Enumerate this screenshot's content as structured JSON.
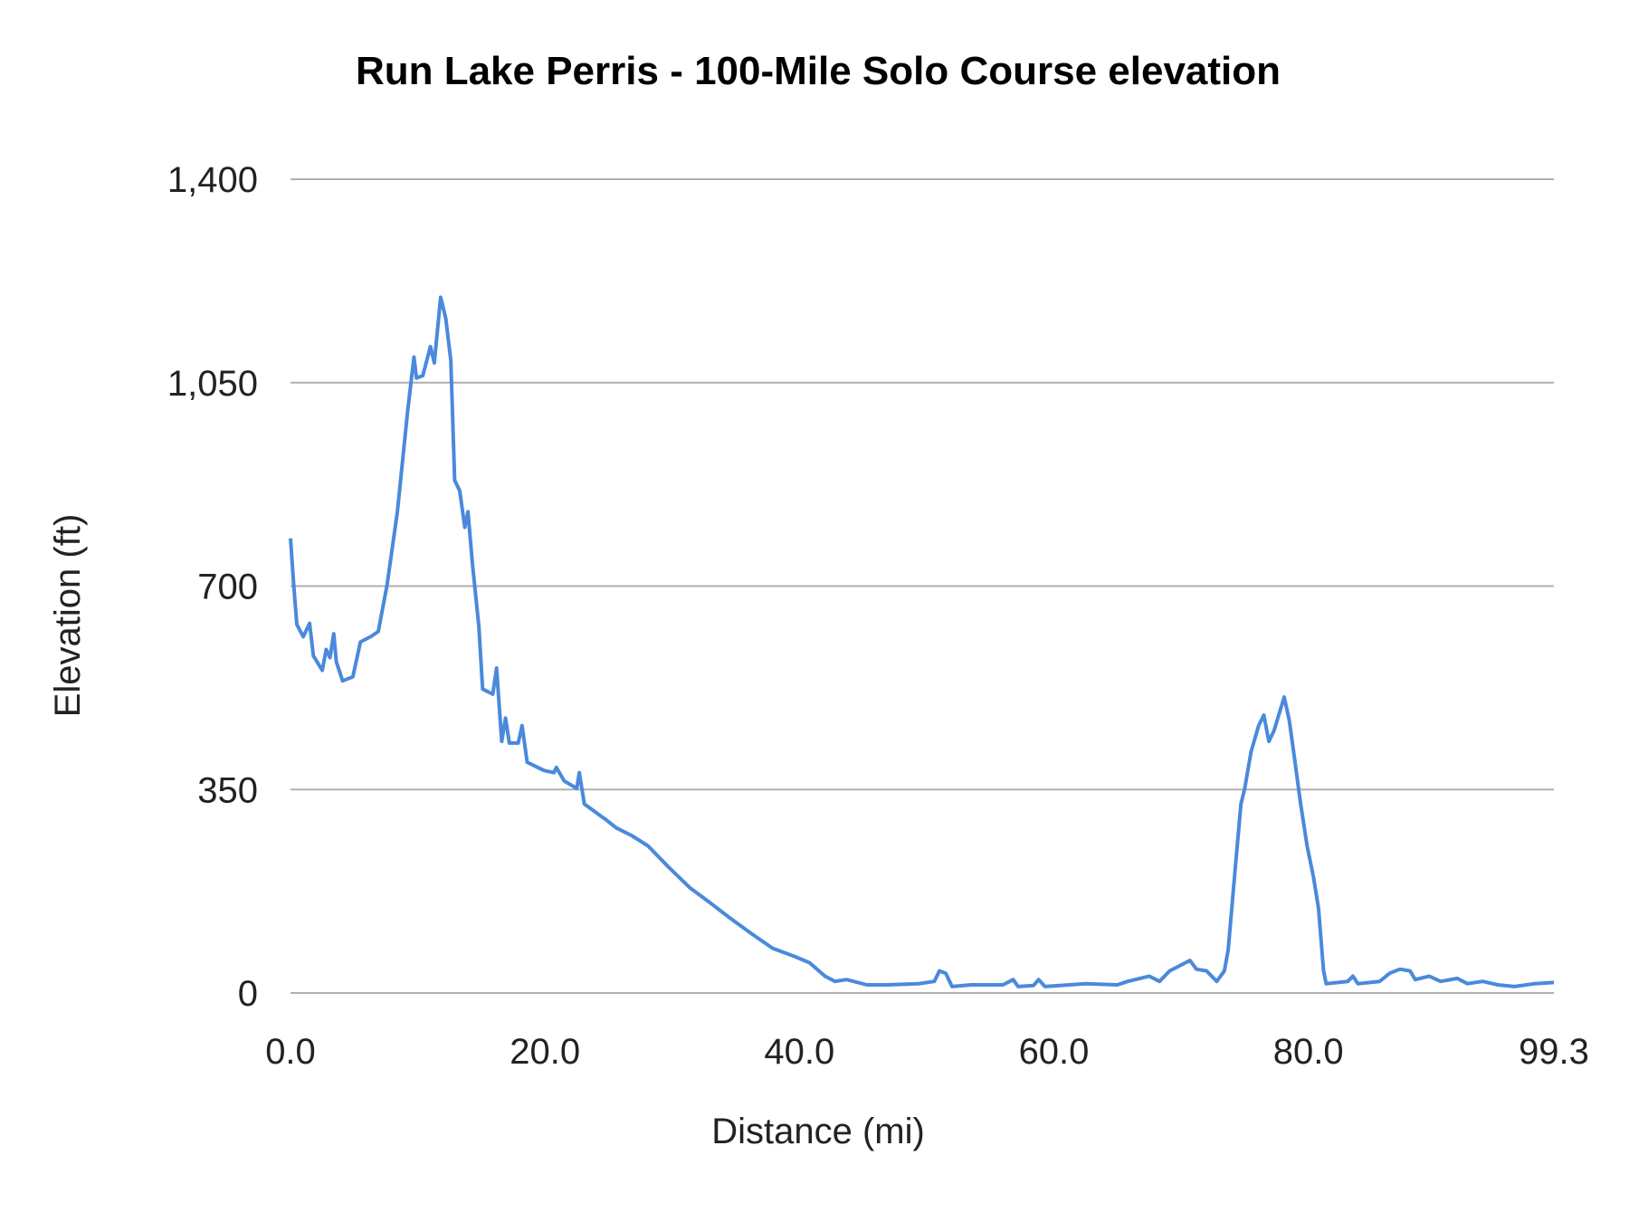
{
  "chart_data": {
    "type": "line",
    "title": "Run Lake Perris - 100-Mile Solo Course elevation",
    "xlabel": "Distance (mi)",
    "ylabel": "Elevation (ft)",
    "xlim": [
      0,
      99.3
    ],
    "ylim": [
      0,
      1400
    ],
    "x_ticks": [
      "0.0",
      "20.0",
      "40.0",
      "60.0",
      "80.0",
      "99.3"
    ],
    "x_tick_values": [
      0,
      20,
      40,
      60,
      80,
      99.3
    ],
    "y_ticks": [
      "0",
      "350",
      "700",
      "1,050",
      "1,400"
    ],
    "y_tick_values": [
      0,
      350,
      700,
      1050,
      1400
    ],
    "grid": "horizontal",
    "legend": "none",
    "line_color": "#4a89dc",
    "grid_color": "#b0b0b0",
    "series": [
      {
        "x": [
          0,
          0.25,
          0.5,
          1.0,
          1.5,
          1.8,
          2.5,
          2.8,
          3.1,
          3.4,
          3.6,
          4.1,
          4.9,
          5.5,
          6.3,
          6.9,
          7.6,
          8.4,
          9.2,
          9.7,
          9.9,
          10.4,
          11.0,
          11.3,
          11.8,
          12.2,
          12.6,
          12.9,
          13.3,
          13.7,
          13.95,
          14.3,
          14.8,
          15.1,
          15.9,
          16.2,
          16.6,
          16.9,
          17.2,
          17.9,
          18.2,
          18.6,
          19.9,
          20.7,
          20.9,
          21.5,
          22.5,
          22.7,
          23.1,
          24.8,
          25.6,
          26.8,
          28.1,
          29.7,
          31.4,
          33.0,
          34.6,
          36.3,
          37.9,
          39.6,
          40.8,
          42.0,
          42.8,
          43.7,
          45.3,
          46.9,
          49.4,
          50.6,
          51.0,
          51.5,
          52.0,
          53.5,
          56.0,
          56.8,
          57.2,
          58.4,
          58.8,
          59.3,
          62.5,
          65.0,
          65.8,
          67.5,
          68.3,
          69.1,
          70.7,
          71.2,
          72.0,
          72.8,
          73.4,
          73.7,
          74.2,
          74.7,
          75.0,
          75.5,
          76.1,
          76.5,
          76.9,
          77.3,
          77.8,
          78.1,
          78.5,
          78.9,
          79.4,
          79.9,
          80.4,
          80.8,
          81.2,
          81.4,
          83.1,
          83.5,
          83.9,
          85.6,
          86.4,
          87.2,
          88.0,
          88.4,
          89.5,
          90.4,
          91.7,
          92.5,
          93.7,
          94.9,
          96.2,
          97.8,
          99.3
        ],
        "y": [
          782,
          703,
          634,
          613,
          636,
          580,
          555,
          591,
          577,
          618,
          570,
          537,
          544,
          604,
          613,
          622,
          703,
          828,
          999,
          1094,
          1058,
          1062,
          1112,
          1084,
          1197,
          1161,
          1089,
          882,
          864,
          801,
          828,
          739,
          631,
          523,
          514,
          559,
          433,
          473,
          430,
          430,
          460,
          397,
          383,
          379,
          388,
          365,
          352,
          379,
          325,
          298,
          284,
          271,
          253,
          217,
          181,
          155,
          128,
          101,
          77,
          63,
          52,
          29,
          20,
          23,
          14,
          14,
          16,
          20,
          38,
          34,
          11,
          14,
          14,
          23,
          11,
          13,
          23,
          11,
          16,
          14,
          20,
          29,
          20,
          38,
          56,
          41,
          38,
          20,
          38,
          74,
          200,
          325,
          352,
          415,
          460,
          478,
          433,
          451,
          487,
          509,
          469,
          406,
          325,
          253,
          200,
          146,
          38,
          16,
          20,
          29,
          16,
          20,
          34,
          41,
          38,
          23,
          29,
          20,
          25,
          16,
          20,
          14,
          11,
          16,
          18
        ]
      }
    ]
  }
}
